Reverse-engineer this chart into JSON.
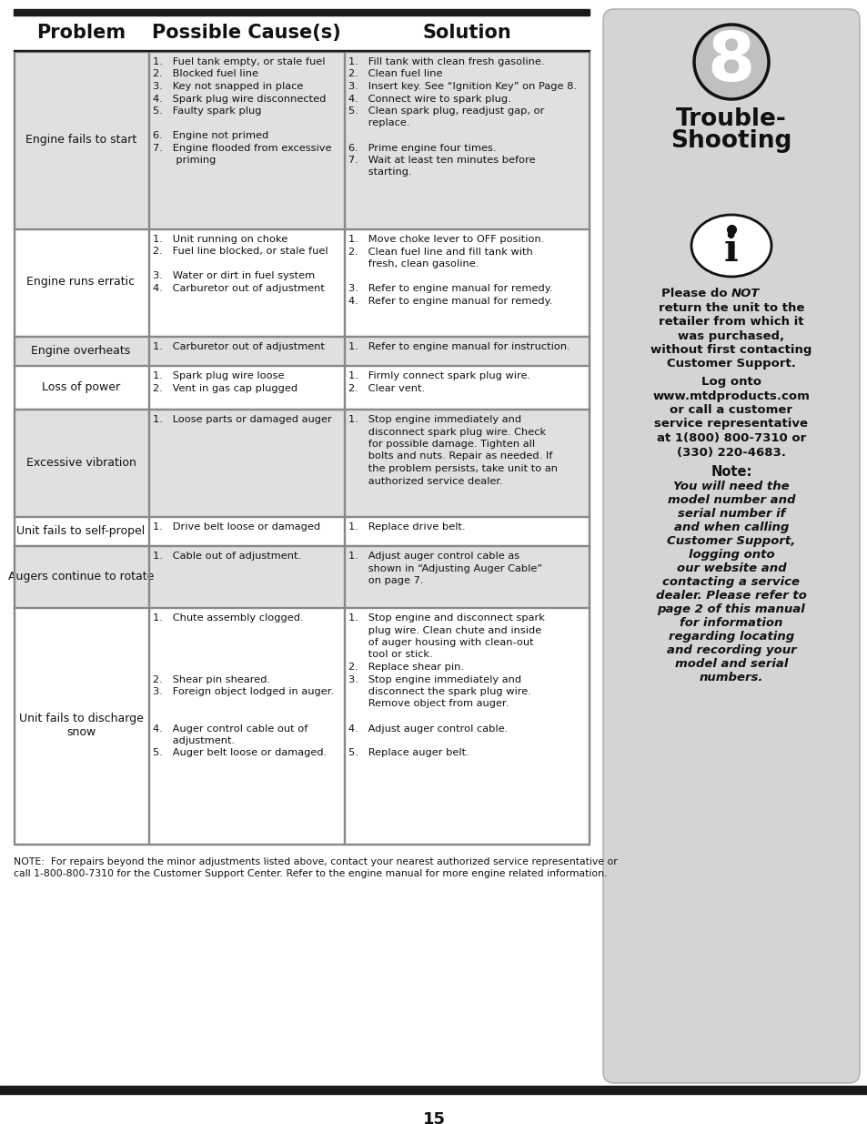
{
  "bg_color": "#ffffff",
  "row_shade_color": "#e0e0e0",
  "row_white_color": "#ffffff",
  "sidebar_bg": "#d4d4d4",
  "border_color": "#1a1a1a",
  "divider_color": "#888888",
  "text_color": "#111111",
  "header_labels": [
    "Problem",
    "Possible Cause(s)",
    "Solution"
  ],
  "footnote": "NOTE:  For repairs beyond the minor adjustments listed above, contact your nearest authorized service representative or\ncall 1-800-800-7310 for the Customer Support Center. Refer to the engine manual for more engine related information.",
  "page_number": "15",
  "sidebar_num": "8",
  "sidebar_title": "Trouble-\nShooting",
  "sidebar_please": [
    "Please do ",
    "NOT"
  ],
  "sidebar_text1_rest": [
    "return the unit to the",
    "retailer from which it",
    "was purchased,",
    "without first contacting",
    "Customer Support."
  ],
  "sidebar_log": [
    "Log onto",
    "www.mtdproducts.com",
    "or call a customer",
    "service representative",
    "at 1(800) 800-7310 or",
    "(330) 220-4683."
  ],
  "sidebar_note_title": "Note:",
  "sidebar_note_body": [
    "You will need the",
    "model number and",
    "serial number if",
    "and when calling",
    "Customer Support,",
    "logging onto",
    "our website and",
    "contacting a service",
    "dealer. Please refer to",
    "page 2 of this manual",
    "for information",
    "regarding locating",
    "and recording your",
    "model and serial",
    "numbers."
  ],
  "rows": [
    {
      "problem": "Engine fails to start",
      "shaded": true,
      "cause_lines": [
        "1.   Fuel tank empty, or stale fuel",
        "2.   Blocked fuel line",
        "3.   Key not snapped in place",
        "4.   Spark plug wire disconnected",
        "5.   Faulty spark plug",
        "",
        "6.   Engine not primed",
        "7.   Engine flooded from excessive",
        "       priming"
      ],
      "solution_lines": [
        "1.   Fill tank with clean fresh gasoline.",
        "2.   Clean fuel line",
        "3.   Insert key. See “Ignition Key” on Page 8.",
        "4.   Connect wire to spark plug.",
        "5.   Clean spark plug, readjust gap, or",
        "      replace.",
        "",
        "6.   Prime engine four times.",
        "7.   Wait at least ten minutes before",
        "      starting."
      ]
    },
    {
      "problem": "Engine runs erratic",
      "shaded": false,
      "cause_lines": [
        "1.   Unit running on choke",
        "2.   Fuel line blocked, or stale fuel",
        "",
        "3.   Water or dirt in fuel system",
        "4.   Carburetor out of adjustment"
      ],
      "solution_lines": [
        "1.   Move choke lever to OFF position.",
        "2.   Clean fuel line and fill tank with",
        "      fresh, clean gasoline.",
        "",
        "3.   Refer to engine manual for remedy.",
        "4.   Refer to engine manual for remedy."
      ]
    },
    {
      "problem": "Engine overheats",
      "shaded": true,
      "cause_lines": [
        "1.   Carburetor out of adjustment"
      ],
      "solution_lines": [
        "1.   Refer to engine manual for instruction."
      ]
    },
    {
      "problem": "Loss of power",
      "shaded": false,
      "cause_lines": [
        "1.   Spark plug wire loose",
        "2.   Vent in gas cap plugged"
      ],
      "solution_lines": [
        "1.   Firmly connect spark plug wire.",
        "2.   Clear vent."
      ]
    },
    {
      "problem": "Excessive vibration",
      "shaded": true,
      "cause_lines": [
        "1.   Loose parts or damaged auger"
      ],
      "solution_lines": [
        "1.   Stop engine immediately and",
        "      disconnect spark plug wire. Check",
        "      for possible damage. Tighten all",
        "      bolts and nuts. Repair as needed. If",
        "      the problem persists, take unit to an",
        "      authorized service dealer."
      ]
    },
    {
      "problem": "Unit fails to self-propel",
      "shaded": false,
      "cause_lines": [
        "1.   Drive belt loose or damaged"
      ],
      "solution_lines": [
        "1.   Replace drive belt."
      ]
    },
    {
      "problem": "Augers continue to rotate",
      "shaded": true,
      "cause_lines": [
        "1.   Cable out of adjustment."
      ],
      "solution_lines": [
        "1.   Adjust auger control cable as",
        "      shown in “Adjusting Auger Cable”",
        "      on page 7."
      ]
    },
    {
      "problem": "Unit fails to discharge\nsnow",
      "shaded": false,
      "cause_lines": [
        "1.   Chute assembly clogged.",
        "",
        "",
        "",
        "",
        "2.   Shear pin sheared.",
        "3.   Foreign object lodged in auger.",
        "",
        "",
        "4.   Auger control cable out of",
        "      adjustment.",
        "5.   Auger belt loose or damaged."
      ],
      "solution_lines": [
        "1.   Stop engine and disconnect spark",
        "      plug wire. Clean chute and inside",
        "      of auger housing with clean-out",
        "      tool or stick.",
        "2.   Replace shear pin.",
        "3.   Stop engine immediately and",
        "      disconnect the spark plug wire.",
        "      Remove object from auger.",
        "",
        "4.   Adjust auger control cable.",
        "",
        "5.   Replace auger belt."
      ]
    }
  ]
}
